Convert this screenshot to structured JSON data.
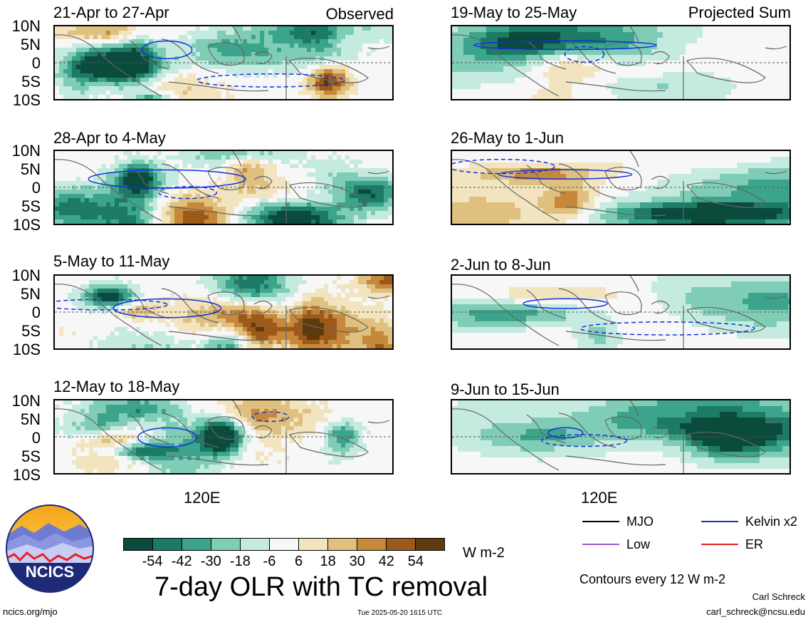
{
  "panels": [
    {
      "title": "21-Apr to 27-Apr",
      "corner": "Observed",
      "style": "obs",
      "seed": 11
    },
    {
      "title": "19-May to 25-May",
      "corner": "Projected Sum",
      "style": "proj",
      "seed": 21
    },
    {
      "title": "28-Apr to 4-May",
      "corner": "",
      "style": "obs",
      "seed": 12
    },
    {
      "title": "26-May to 1-Jun",
      "corner": "",
      "style": "proj",
      "seed": 22
    },
    {
      "title": "5-May to 11-May",
      "corner": "",
      "style": "obs",
      "seed": 13
    },
    {
      "title": "2-Jun to 8-Jun",
      "corner": "",
      "style": "proj",
      "seed": 23
    },
    {
      "title": "12-May to 18-May",
      "corner": "",
      "style": "obs",
      "seed": 14
    },
    {
      "title": "9-Jun to 15-Jun",
      "corner": "",
      "style": "proj",
      "seed": 24
    }
  ],
  "lat_labels": [
    "10N",
    "5N",
    "0",
    "5S",
    "10S"
  ],
  "lon_label": "120E",
  "colorbar": {
    "colors": [
      "#0b4b3c",
      "#1d7a64",
      "#3ba48a",
      "#7fcdb6",
      "#c5ebe0",
      "#f7f7f7",
      "#f2e4bf",
      "#dfc07e",
      "#c6883b",
      "#9c5a1a",
      "#5e3a0c"
    ],
    "ticks": [
      "-54",
      "-42",
      "-30",
      "-18",
      "-6",
      "6",
      "18",
      "30",
      "42",
      "54"
    ],
    "units": "W m-2"
  },
  "title": "7-day OLR with TC removal",
  "legend": [
    {
      "label": "MJO",
      "color": "#000000"
    },
    {
      "label": "Kelvin x2",
      "color": "#1030e0"
    },
    {
      "label": "Low",
      "color": "#9a5ad0"
    },
    {
      "label": "ER",
      "color": "#e02020"
    }
  ],
  "contour_note": "Contours every 12 W m-2",
  "logo_text": "NCICS",
  "footer": {
    "left": "ncics.org/mjo",
    "center": "Tue 2025-05-20 1615 UTC",
    "author": "Carl Schreck",
    "email": "carl_schreck@ncsu.edu"
  },
  "chart_data": {
    "type": "heatmap",
    "variable": "7-day OLR anomaly",
    "units": "W m-2",
    "yrange": [
      "10S",
      "10N"
    ],
    "yticks": [
      "10N",
      "5N",
      "0",
      "5S",
      "10S"
    ],
    "xtick": "120E",
    "levels": [
      -54,
      -42,
      -30,
      -18,
      -6,
      6,
      18,
      30,
      42,
      54
    ],
    "contour_interval": 12
  }
}
